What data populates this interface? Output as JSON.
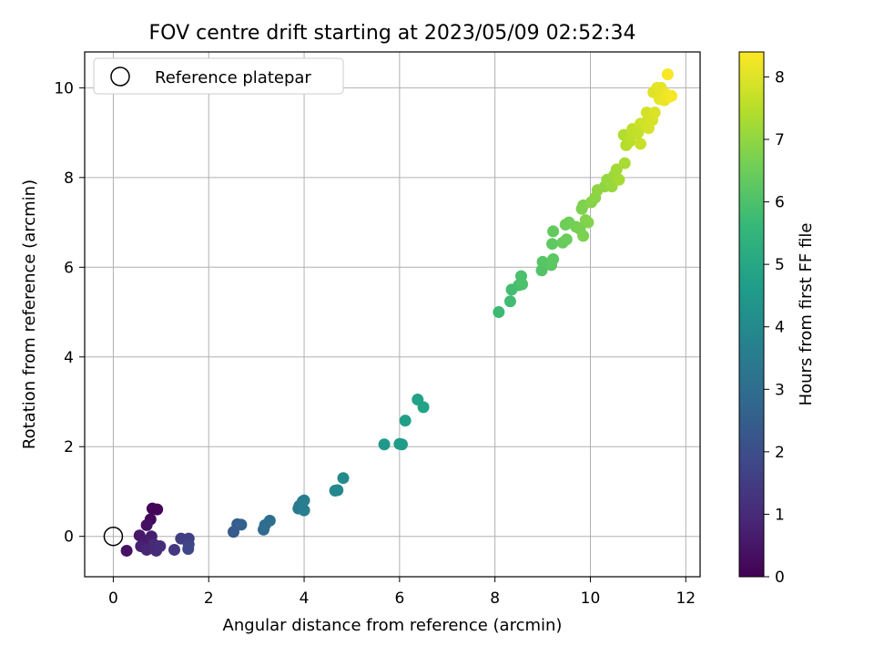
{
  "chart_data": {
    "type": "scatter",
    "title": "FOV centre drift starting at 2023/05/09 02:52:34",
    "xlabel": "Angular distance from reference (arcmin)",
    "ylabel": "Rotation from reference (arcmin)",
    "xlim": [
      -0.6,
      12.3
    ],
    "ylim": [
      -0.9,
      10.8
    ],
    "xticks": [
      0,
      2,
      4,
      6,
      8,
      10,
      12
    ],
    "yticks": [
      0,
      2,
      4,
      6,
      8,
      10
    ],
    "grid": true,
    "legend": {
      "placement": "top-left",
      "entries": [
        "Reference platepar"
      ]
    },
    "reference_point": {
      "x": 0,
      "y": 0
    },
    "colorbar": {
      "label": "Hours from first FF file",
      "range": [
        0,
        8.4
      ],
      "ticks": [
        0,
        1,
        2,
        3,
        4,
        5,
        6,
        7,
        8
      ],
      "colormap": [
        "#440154",
        "#482878",
        "#3e4989",
        "#31688e",
        "#26828e",
        "#1f9e89",
        "#35b779",
        "#6ece58",
        "#b5de2b",
        "#fde725"
      ]
    },
    "series": [
      {
        "points": [
          {
            "x": 0.82,
            "y": 0.62,
            "t": 0.05
          },
          {
            "x": 0.92,
            "y": 0.6,
            "t": 0.1
          },
          {
            "x": 0.78,
            "y": 0.38,
            "t": 0.2
          },
          {
            "x": 0.7,
            "y": 0.25,
            "t": 0.35
          },
          {
            "x": 0.28,
            "y": -0.32,
            "t": 0.4
          },
          {
            "x": 0.55,
            "y": 0.02,
            "t": 0.55
          },
          {
            "x": 0.65,
            "y": -0.1,
            "t": 0.6
          },
          {
            "x": 0.8,
            "y": 0.0,
            "t": 0.7
          },
          {
            "x": 0.58,
            "y": -0.22,
            "t": 0.75
          },
          {
            "x": 0.7,
            "y": -0.3,
            "t": 0.85
          },
          {
            "x": 0.85,
            "y": -0.18,
            "t": 0.95
          },
          {
            "x": 0.9,
            "y": -0.32,
            "t": 1.0
          },
          {
            "x": 0.98,
            "y": -0.22,
            "t": 1.1
          },
          {
            "x": 1.28,
            "y": -0.3,
            "t": 1.35
          },
          {
            "x": 1.42,
            "y": -0.05,
            "t": 1.5
          },
          {
            "x": 1.58,
            "y": -0.05,
            "t": 1.6
          },
          {
            "x": 1.58,
            "y": -0.18,
            "t": 1.7
          },
          {
            "x": 1.57,
            "y": -0.28,
            "t": 1.8
          },
          {
            "x": 2.52,
            "y": 0.1,
            "t": 2.4
          },
          {
            "x": 2.6,
            "y": 0.27,
            "t": 2.5
          },
          {
            "x": 2.68,
            "y": 0.26,
            "t": 2.6
          },
          {
            "x": 3.15,
            "y": 0.15,
            "t": 2.9
          },
          {
            "x": 3.18,
            "y": 0.25,
            "t": 3.0
          },
          {
            "x": 3.28,
            "y": 0.35,
            "t": 3.05
          },
          {
            "x": 3.88,
            "y": 0.62,
            "t": 3.4
          },
          {
            "x": 3.9,
            "y": 0.68,
            "t": 3.45
          },
          {
            "x": 3.97,
            "y": 0.78,
            "t": 3.5
          },
          {
            "x": 4.0,
            "y": 0.58,
            "t": 3.55
          },
          {
            "x": 4.0,
            "y": 0.8,
            "t": 3.6
          },
          {
            "x": 4.65,
            "y": 1.02,
            "t": 3.9
          },
          {
            "x": 4.7,
            "y": 1.03,
            "t": 3.95
          },
          {
            "x": 4.82,
            "y": 1.3,
            "t": 4.05
          },
          {
            "x": 5.68,
            "y": 2.05,
            "t": 4.5
          },
          {
            "x": 6.0,
            "y": 2.06,
            "t": 4.6
          },
          {
            "x": 6.05,
            "y": 2.05,
            "t": 4.62
          },
          {
            "x": 6.12,
            "y": 2.58,
            "t": 4.7
          },
          {
            "x": 6.38,
            "y": 3.05,
            "t": 4.8
          },
          {
            "x": 6.5,
            "y": 2.88,
            "t": 4.85
          },
          {
            "x": 8.08,
            "y": 5.0,
            "t": 5.7
          },
          {
            "x": 8.32,
            "y": 5.24,
            "t": 5.8
          },
          {
            "x": 8.35,
            "y": 5.5,
            "t": 5.85
          },
          {
            "x": 8.5,
            "y": 5.6,
            "t": 5.9
          },
          {
            "x": 8.55,
            "y": 5.8,
            "t": 5.95
          },
          {
            "x": 8.57,
            "y": 5.62,
            "t": 5.97
          },
          {
            "x": 8.98,
            "y": 5.93,
            "t": 6.1
          },
          {
            "x": 9.0,
            "y": 6.12,
            "t": 6.15
          },
          {
            "x": 9.18,
            "y": 6.05,
            "t": 6.2
          },
          {
            "x": 9.22,
            "y": 6.18,
            "t": 6.25
          },
          {
            "x": 9.2,
            "y": 6.52,
            "t": 6.3
          },
          {
            "x": 9.22,
            "y": 6.8,
            "t": 6.35
          },
          {
            "x": 9.42,
            "y": 6.55,
            "t": 6.4
          },
          {
            "x": 9.5,
            "y": 6.62,
            "t": 6.45
          },
          {
            "x": 9.48,
            "y": 6.95,
            "t": 6.5
          },
          {
            "x": 9.55,
            "y": 7.0,
            "t": 6.55
          },
          {
            "x": 9.7,
            "y": 6.9,
            "t": 6.6
          },
          {
            "x": 9.78,
            "y": 6.85,
            "t": 6.65
          },
          {
            "x": 9.85,
            "y": 6.7,
            "t": 6.7
          },
          {
            "x": 9.82,
            "y": 7.3,
            "t": 6.72
          },
          {
            "x": 9.85,
            "y": 7.38,
            "t": 6.75
          },
          {
            "x": 9.9,
            "y": 7.05,
            "t": 6.78
          },
          {
            "x": 9.95,
            "y": 7.0,
            "t": 6.8
          },
          {
            "x": 10.02,
            "y": 7.45,
            "t": 6.85
          },
          {
            "x": 10.1,
            "y": 7.55,
            "t": 6.9
          },
          {
            "x": 10.15,
            "y": 7.72,
            "t": 6.95
          },
          {
            "x": 10.3,
            "y": 7.8,
            "t": 7.0
          },
          {
            "x": 10.35,
            "y": 7.95,
            "t": 7.05
          },
          {
            "x": 10.45,
            "y": 7.8,
            "t": 7.1
          },
          {
            "x": 10.5,
            "y": 8.05,
            "t": 7.15
          },
          {
            "x": 10.55,
            "y": 8.18,
            "t": 7.2
          },
          {
            "x": 10.6,
            "y": 7.95,
            "t": 7.25
          },
          {
            "x": 10.72,
            "y": 8.32,
            "t": 7.3
          },
          {
            "x": 10.7,
            "y": 8.95,
            "t": 7.4
          },
          {
            "x": 10.75,
            "y": 8.72,
            "t": 7.45
          },
          {
            "x": 10.82,
            "y": 8.8,
            "t": 7.5
          },
          {
            "x": 10.85,
            "y": 8.92,
            "t": 7.55
          },
          {
            "x": 10.88,
            "y": 9.08,
            "t": 7.6
          },
          {
            "x": 10.95,
            "y": 8.98,
            "t": 7.62
          },
          {
            "x": 11.0,
            "y": 9.0,
            "t": 7.65
          },
          {
            "x": 11.05,
            "y": 8.75,
            "t": 7.7
          },
          {
            "x": 11.05,
            "y": 9.2,
            "t": 7.75
          },
          {
            "x": 11.15,
            "y": 9.22,
            "t": 7.8
          },
          {
            "x": 11.18,
            "y": 9.45,
            "t": 7.85
          },
          {
            "x": 11.22,
            "y": 9.1,
            "t": 7.88
          },
          {
            "x": 11.3,
            "y": 9.28,
            "t": 7.9
          },
          {
            "x": 11.35,
            "y": 9.45,
            "t": 7.95
          },
          {
            "x": 11.32,
            "y": 9.9,
            "t": 8.0
          },
          {
            "x": 11.4,
            "y": 10.0,
            "t": 8.05
          },
          {
            "x": 11.48,
            "y": 10.0,
            "t": 8.1
          },
          {
            "x": 11.45,
            "y": 9.75,
            "t": 8.12
          },
          {
            "x": 11.55,
            "y": 9.72,
            "t": 8.15
          },
          {
            "x": 11.6,
            "y": 9.85,
            "t": 8.2
          },
          {
            "x": 11.65,
            "y": 9.8,
            "t": 8.25
          },
          {
            "x": 11.7,
            "y": 9.82,
            "t": 8.3
          },
          {
            "x": 11.62,
            "y": 10.3,
            "t": 8.35
          }
        ]
      }
    ]
  }
}
